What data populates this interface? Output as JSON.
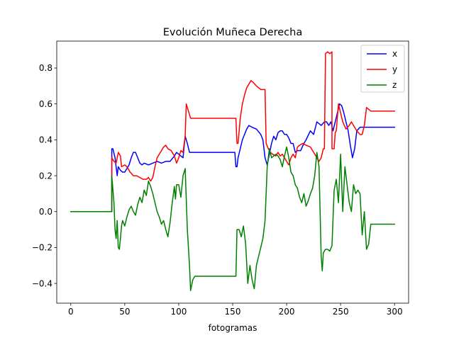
{
  "chart_data": {
    "type": "line",
    "title": "Evolución Muñeca Derecha",
    "xlabel": "fotogramas",
    "ylabel": "",
    "xlim": [
      -13,
      313
    ],
    "ylim": [
      -0.51,
      0.95
    ],
    "xticks": [
      0,
      50,
      100,
      150,
      200,
      250,
      300
    ],
    "yticks": [
      -0.4,
      -0.2,
      0.0,
      0.2,
      0.4,
      0.6,
      0.8
    ],
    "xtick_labels": [
      "0",
      "50",
      "100",
      "150",
      "200",
      "250",
      "300"
    ],
    "ytick_labels": [
      "−0.4",
      "−0.2",
      "0.0",
      "0.2",
      "0.4",
      "0.6",
      "0.8"
    ],
    "legend_position": "top-right",
    "series": [
      {
        "name": "x",
        "color": "#0000ff",
        "points": [
          [
            0,
            0
          ],
          [
            38,
            0
          ],
          [
            38,
            0.35
          ],
          [
            39,
            0.35
          ],
          [
            41,
            0.3
          ],
          [
            42,
            0.25
          ],
          [
            43,
            0.2
          ],
          [
            44,
            0.25
          ],
          [
            46,
            0.23
          ],
          [
            48,
            0.22
          ],
          [
            50,
            0.22
          ],
          [
            52,
            0.24
          ],
          [
            54,
            0.26
          ],
          [
            56,
            0.3
          ],
          [
            58,
            0.33
          ],
          [
            60,
            0.33
          ],
          [
            62,
            0.3
          ],
          [
            64,
            0.27
          ],
          [
            66,
            0.26
          ],
          [
            68,
            0.27
          ],
          [
            72,
            0.26
          ],
          [
            76,
            0.27
          ],
          [
            80,
            0.28
          ],
          [
            84,
            0.27
          ],
          [
            88,
            0.28
          ],
          [
            92,
            0.28
          ],
          [
            96,
            0.31
          ],
          [
            98,
            0.33
          ],
          [
            100,
            0.32
          ],
          [
            102,
            0.31
          ],
          [
            104,
            0.3
          ],
          [
            106,
            0.42
          ],
          [
            108,
            0.38
          ],
          [
            110,
            0.33
          ],
          [
            120,
            0.33
          ],
          [
            130,
            0.33
          ],
          [
            140,
            0.33
          ],
          [
            152,
            0.33
          ],
          [
            153,
            0.25
          ],
          [
            154,
            0.25
          ],
          [
            155,
            0.3
          ],
          [
            157,
            0.35
          ],
          [
            159,
            0.4
          ],
          [
            161,
            0.43
          ],
          [
            163,
            0.46
          ],
          [
            165,
            0.48
          ],
          [
            168,
            0.47
          ],
          [
            172,
            0.46
          ],
          [
            176,
            0.43
          ],
          [
            178,
            0.4
          ],
          [
            180,
            0.3
          ],
          [
            182,
            0.26
          ],
          [
            184,
            0.32
          ],
          [
            186,
            0.38
          ],
          [
            188,
            0.42
          ],
          [
            190,
            0.4
          ],
          [
            192,
            0.44
          ],
          [
            194,
            0.45
          ],
          [
            196,
            0.45
          ],
          [
            198,
            0.43
          ],
          [
            200,
            0.43
          ],
          [
            202,
            0.41
          ],
          [
            204,
            0.38
          ],
          [
            206,
            0.38
          ],
          [
            208,
            0.33
          ],
          [
            210,
            0.34
          ],
          [
            213,
            0.34
          ],
          [
            216,
            0.38
          ],
          [
            218,
            0.4
          ],
          [
            222,
            0.45
          ],
          [
            225,
            0.43
          ],
          [
            228,
            0.5
          ],
          [
            232,
            0.48
          ],
          [
            235,
            0.5
          ],
          [
            237,
            0.5
          ],
          [
            239,
            0.48
          ],
          [
            241,
            0.5
          ],
          [
            243,
            0.45
          ],
          [
            245,
            0.5
          ],
          [
            247,
            0.55
          ],
          [
            249,
            0.6
          ],
          [
            251,
            0.59
          ],
          [
            253,
            0.55
          ],
          [
            255,
            0.5
          ],
          [
            257,
            0.45
          ],
          [
            259,
            0.37
          ],
          [
            261,
            0.3
          ],
          [
            263,
            0.35
          ],
          [
            265,
            0.45
          ],
          [
            268,
            0.47
          ],
          [
            272,
            0.47
          ],
          [
            275,
            0.47
          ],
          [
            300,
            0.47
          ]
        ]
      },
      {
        "name": "y",
        "color": "#ff0000",
        "points": [
          [
            0,
            0
          ],
          [
            38,
            0
          ],
          [
            38,
            0.3
          ],
          [
            40,
            0.28
          ],
          [
            42,
            0.27
          ],
          [
            44,
            0.33
          ],
          [
            46,
            0.31
          ],
          [
            47,
            0.25
          ],
          [
            50,
            0.26
          ],
          [
            52,
            0.25
          ],
          [
            55,
            0.22
          ],
          [
            58,
            0.2
          ],
          [
            61,
            0.2
          ],
          [
            64,
            0.19
          ],
          [
            67,
            0.18
          ],
          [
            70,
            0.18
          ],
          [
            72,
            0.19
          ],
          [
            74,
            0.17
          ],
          [
            76,
            0.19
          ],
          [
            78,
            0.25
          ],
          [
            80,
            0.3
          ],
          [
            82,
            0.32
          ],
          [
            84,
            0.34
          ],
          [
            86,
            0.36
          ],
          [
            88,
            0.37
          ],
          [
            90,
            0.35
          ],
          [
            93,
            0.34
          ],
          [
            96,
            0.31
          ],
          [
            98,
            0.27
          ],
          [
            100,
            0.3
          ],
          [
            102,
            0.34
          ],
          [
            104,
            0.33
          ],
          [
            106,
            0.42
          ],
          [
            107,
            0.6
          ],
          [
            109,
            0.56
          ],
          [
            111,
            0.52
          ],
          [
            120,
            0.52
          ],
          [
            130,
            0.52
          ],
          [
            140,
            0.52
          ],
          [
            150,
            0.52
          ],
          [
            153,
            0.52
          ],
          [
            154,
            0.38
          ],
          [
            155,
            0.38
          ],
          [
            157,
            0.52
          ],
          [
            159,
            0.6
          ],
          [
            161,
            0.65
          ],
          [
            163,
            0.69
          ],
          [
            165,
            0.71
          ],
          [
            167,
            0.73
          ],
          [
            169,
            0.72
          ],
          [
            172,
            0.7
          ],
          [
            176,
            0.68
          ],
          [
            179,
            0.68
          ],
          [
            180,
            0.68
          ],
          [
            181,
            0.38
          ],
          [
            183,
            0.35
          ],
          [
            185,
            0.33
          ],
          [
            187,
            0.32
          ],
          [
            190,
            0.31
          ],
          [
            192,
            0.33
          ],
          [
            194,
            0.31
          ],
          [
            196,
            0.32
          ],
          [
            198,
            0.3
          ],
          [
            200,
            0.28
          ],
          [
            202,
            0.26
          ],
          [
            204,
            0.3
          ],
          [
            206,
            0.32
          ],
          [
            208,
            0.3
          ],
          [
            210,
            0.36
          ],
          [
            212,
            0.37
          ],
          [
            215,
            0.38
          ],
          [
            218,
            0.37
          ],
          [
            222,
            0.36
          ],
          [
            226,
            0.32
          ],
          [
            230,
            0.28
          ],
          [
            232,
            0.3
          ],
          [
            234,
            0.35
          ],
          [
            235,
            0.35
          ],
          [
            236,
            0.88
          ],
          [
            238,
            0.89
          ],
          [
            240,
            0.88
          ],
          [
            242,
            0.89
          ],
          [
            242,
            0.35
          ],
          [
            244,
            0.35
          ],
          [
            245,
            0.44
          ],
          [
            246,
            0.45
          ],
          [
            248,
            0.6
          ],
          [
            250,
            0.55
          ],
          [
            252,
            0.5
          ],
          [
            255,
            0.46
          ],
          [
            258,
            0.48
          ],
          [
            260,
            0.5
          ],
          [
            262,
            0.48
          ],
          [
            265,
            0.45
          ],
          [
            268,
            0.43
          ],
          [
            270,
            0.43
          ],
          [
            272,
            0.48
          ],
          [
            274,
            0.58
          ],
          [
            276,
            0.57
          ],
          [
            278,
            0.56
          ],
          [
            300,
            0.56
          ]
        ]
      },
      {
        "name": "z",
        "color": "#008000",
        "points": [
          [
            0,
            0
          ],
          [
            38,
            0
          ],
          [
            38,
            0.2
          ],
          [
            40,
            0.05
          ],
          [
            41,
            -0.1
          ],
          [
            42,
            -0.15
          ],
          [
            43,
            -0.05
          ],
          [
            44,
            -0.2
          ],
          [
            45,
            -0.21
          ],
          [
            46,
            -0.15
          ],
          [
            47,
            -0.08
          ],
          [
            48,
            -0.05
          ],
          [
            50,
            -0.08
          ],
          [
            52,
            -0.03
          ],
          [
            54,
            0.01
          ],
          [
            56,
            0.03
          ],
          [
            58,
            0.0
          ],
          [
            60,
            -0.02
          ],
          [
            62,
            0.04
          ],
          [
            64,
            0.08
          ],
          [
            66,
            0.05
          ],
          [
            68,
            0.12
          ],
          [
            70,
            0.09
          ],
          [
            72,
            0.17
          ],
          [
            74,
            0.14
          ],
          [
            76,
            0.1
          ],
          [
            78,
            0.05
          ],
          [
            80,
            0.0
          ],
          [
            82,
            -0.03
          ],
          [
            84,
            -0.07
          ],
          [
            86,
            -0.05
          ],
          [
            88,
            -0.1
          ],
          [
            90,
            -0.14
          ],
          [
            92,
            -0.06
          ],
          [
            94,
            0.05
          ],
          [
            96,
            0.14
          ],
          [
            97,
            0.07
          ],
          [
            98,
            0.15
          ],
          [
            100,
            0.15
          ],
          [
            102,
            0.08
          ],
          [
            104,
            0.2
          ],
          [
            106,
            0.24
          ],
          [
            108,
            -0.1
          ],
          [
            110,
            -0.3
          ],
          [
            111,
            -0.44
          ],
          [
            113,
            -0.38
          ],
          [
            115,
            -0.36
          ],
          [
            120,
            -0.36
          ],
          [
            130,
            -0.36
          ],
          [
            140,
            -0.36
          ],
          [
            150,
            -0.36
          ],
          [
            153,
            -0.36
          ],
          [
            154,
            -0.1
          ],
          [
            156,
            -0.1
          ],
          [
            158,
            -0.14
          ],
          [
            160,
            -0.08
          ],
          [
            162,
            -0.18
          ],
          [
            164,
            -0.4
          ],
          [
            166,
            -0.3
          ],
          [
            168,
            -0.38
          ],
          [
            170,
            -0.43
          ],
          [
            172,
            -0.3
          ],
          [
            174,
            -0.25
          ],
          [
            176,
            -0.2
          ],
          [
            178,
            -0.15
          ],
          [
            180,
            -0.05
          ],
          [
            182,
            0.25
          ],
          [
            184,
            0.35
          ],
          [
            186,
            0.3
          ],
          [
            188,
            0.31
          ],
          [
            190,
            0.32
          ],
          [
            192,
            0.31
          ],
          [
            194,
            0.29
          ],
          [
            196,
            0.25
          ],
          [
            198,
            0.31
          ],
          [
            200,
            0.36
          ],
          [
            202,
            0.3
          ],
          [
            204,
            0.22
          ],
          [
            206,
            0.2
          ],
          [
            208,
            0.15
          ],
          [
            210,
            0.13
          ],
          [
            212,
            0.08
          ],
          [
            214,
            0.05
          ],
          [
            216,
            0.1
          ],
          [
            218,
            0.03
          ],
          [
            220,
            0.06
          ],
          [
            222,
            0.1
          ],
          [
            224,
            0.13
          ],
          [
            226,
            0.2
          ],
          [
            228,
            0.33
          ],
          [
            230,
            0.25
          ],
          [
            232,
            -0.25
          ],
          [
            233,
            -0.33
          ],
          [
            234,
            -0.23
          ],
          [
            236,
            -0.21
          ],
          [
            238,
            -0.21
          ],
          [
            240,
            -0.22
          ],
          [
            242,
            -0.19
          ],
          [
            244,
            0.12
          ],
          [
            246,
            0.18
          ],
          [
            248,
            0.05
          ],
          [
            250,
            0.32
          ],
          [
            252,
            0.0
          ],
          [
            254,
            0.25
          ],
          [
            256,
            0.15
          ],
          [
            258,
            0.05
          ],
          [
            260,
            0.0
          ],
          [
            262,
            0.15
          ],
          [
            264,
            0.1
          ],
          [
            266,
            0.12
          ],
          [
            268,
            0.1
          ],
          [
            270,
            -0.13
          ],
          [
            272,
            0.0
          ],
          [
            274,
            -0.21
          ],
          [
            276,
            -0.18
          ],
          [
            278,
            -0.07
          ],
          [
            300,
            -0.07
          ]
        ]
      }
    ]
  }
}
